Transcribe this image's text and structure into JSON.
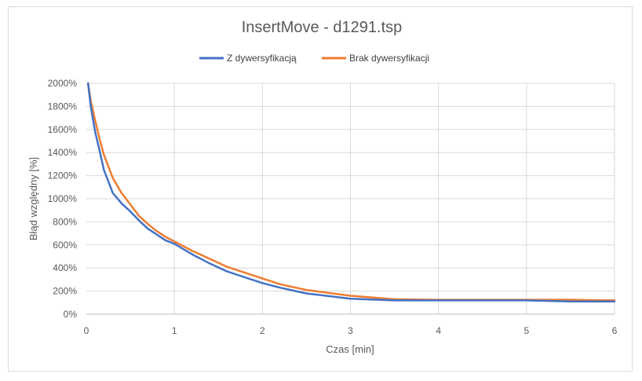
{
  "chart_data": {
    "type": "line",
    "title": "InsertMove - d1291.tsp",
    "xlabel": "Czas [min]",
    "ylabel": "Błąd względny [%]",
    "xlim": [
      0,
      6
    ],
    "ylim": [
      0,
      2000
    ],
    "x_ticks": [
      "0",
      "1",
      "2",
      "3",
      "4",
      "5",
      "6"
    ],
    "y_ticks": [
      "0%",
      "200%",
      "400%",
      "600%",
      "800%",
      "1000%",
      "1200%",
      "1400%",
      "1600%",
      "1800%",
      "2000%"
    ],
    "grid": true,
    "legend_position": "top",
    "series": [
      {
        "name": "Z dywersyfikacją",
        "color": "#4472C4",
        "x": [
          0.02,
          0.05,
          0.1,
          0.15,
          0.2,
          0.3,
          0.4,
          0.5,
          0.6,
          0.7,
          0.8,
          0.9,
          1.0,
          1.2,
          1.4,
          1.6,
          1.8,
          2.0,
          2.2,
          2.5,
          3.0,
          3.5,
          4.0,
          4.5,
          5.0,
          5.5,
          6.0
        ],
        "y": [
          2000,
          1800,
          1580,
          1420,
          1250,
          1050,
          960,
          890,
          810,
          740,
          690,
          640,
          610,
          520,
          440,
          370,
          320,
          270,
          230,
          180,
          135,
          120,
          120,
          120,
          120,
          110,
          110
        ]
      },
      {
        "name": "Brak dywersyfikacji",
        "color": "#ED7D31",
        "x": [
          0.02,
          0.05,
          0.1,
          0.15,
          0.2,
          0.3,
          0.4,
          0.5,
          0.6,
          0.7,
          0.8,
          0.9,
          1.0,
          1.2,
          1.4,
          1.6,
          1.8,
          2.0,
          2.2,
          2.5,
          3.0,
          3.5,
          4.0,
          4.5,
          5.0,
          5.5,
          6.0
        ],
        "y": [
          2000,
          1850,
          1680,
          1520,
          1380,
          1180,
          1050,
          950,
          850,
          780,
          720,
          670,
          630,
          550,
          480,
          410,
          360,
          310,
          260,
          210,
          160,
          130,
          125,
          125,
          125,
          125,
          120
        ]
      }
    ]
  }
}
